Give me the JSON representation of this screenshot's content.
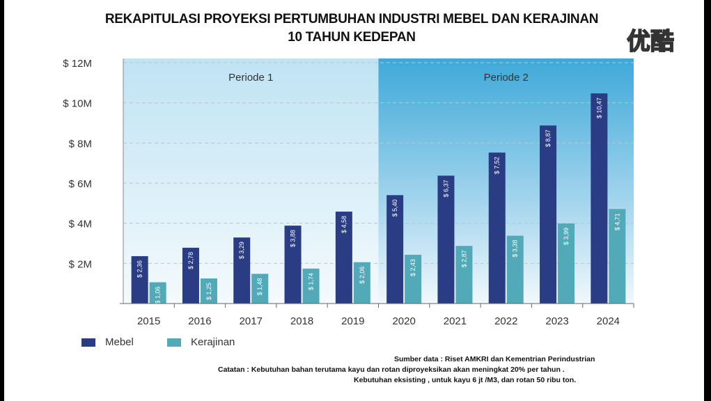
{
  "title_line1": "REKAPITULASI PROYEKSI PERTUMBUHAN INDUSTRI MEBEL DAN KERAJINAN",
  "title_line2": "10 TAHUN KEDEPAN",
  "watermark": "优酷",
  "notes": {
    "source": "Sumber data  : Riset AMKRI dan Kementrian Perindustrian",
    "catatan": "Catatan : Kebutuhan bahan terutama  kayu dan rotan diproyeksikan akan meningkat 20%  per tahun .",
    "existing": "Kebutuhan  eksisting , untuk kayu  6 jt /M3, dan rotan 50  ribu ton."
  },
  "chart_data": {
    "type": "bar",
    "title": "REKAPITULASI PROYEKSI PERTUMBUHAN INDUSTRI MEBEL DAN KERAJINAN 10 TAHUN KEDEPAN",
    "categories": [
      "2015",
      "2016",
      "2017",
      "2018",
      "2019",
      "2020",
      "2021",
      "2022",
      "2023",
      "2024"
    ],
    "series": [
      {
        "name": "Mebel",
        "color": "#2a3d84",
        "values": [
          2.36,
          2.78,
          3.29,
          3.88,
          4.58,
          5.4,
          6.37,
          7.52,
          8.87,
          10.47
        ],
        "labels": [
          "$ 2,36",
          "$ 2,78",
          "$ 3,29",
          "$ 3,88",
          "$ 4,58",
          "$ 5,40",
          "$ 6,37",
          "$ 7,52",
          "$ 8,87",
          "$ 10,47"
        ]
      },
      {
        "name": "Kerajinan",
        "color": "#52aab8",
        "values": [
          1.06,
          1.25,
          1.48,
          1.74,
          2.06,
          2.43,
          2.87,
          3.38,
          3.99,
          4.71
        ],
        "labels": [
          "$ 1,06",
          "$ 1,25",
          "$ 1,48",
          "$ 1,74",
          "$ 2,06",
          "$ 2,43",
          "$ 2,87",
          "$ 3,38",
          "$ 3,99",
          "$ 4,71"
        ]
      }
    ],
    "ylim": [
      0,
      12
    ],
    "yticks": [
      "$ 2M",
      "$ 4M",
      "$ 6M",
      "$ 8M",
      "$ 10M",
      "$ 12M"
    ],
    "periods": [
      {
        "label": "Periode 1",
        "from": "2015",
        "to": "2019"
      },
      {
        "label": "Periode 2",
        "from": "2020",
        "to": "2024"
      }
    ],
    "grid": true,
    "legend": "bottom-left"
  }
}
